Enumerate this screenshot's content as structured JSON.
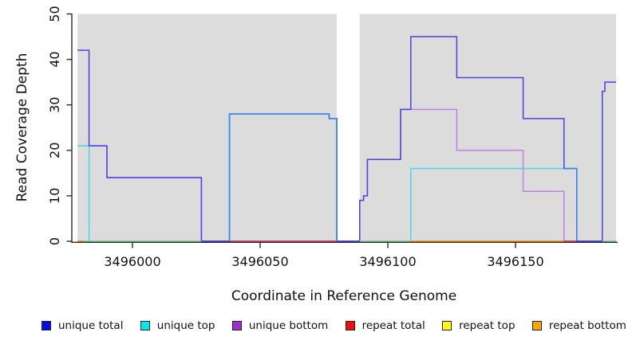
{
  "figure": {
    "background": "#ffffff",
    "panel_color": "#dcdcdc",
    "axis_color": "#2a2a2a"
  },
  "chart_data": {
    "type": "line",
    "step": true,
    "title": "",
    "xlabel": "Coordinate in Reference Genome",
    "ylabel": "Read Coverage Depth",
    "xlim": [
      3495978.5,
      3496189.4
    ],
    "ylim": [
      0,
      50
    ],
    "x_ticks": [
      "3496000",
      "3496050",
      "3496100",
      "3496150"
    ],
    "x_tick_values": [
      3496000,
      3496050,
      3496100,
      3496150
    ],
    "y_ticks": [
      "0",
      "10",
      "20",
      "30",
      "40",
      "50"
    ],
    "y_tick_values": [
      0,
      10,
      20,
      30,
      40,
      50
    ],
    "grid": false,
    "legend_position": "bottom",
    "background_bands": [
      {
        "x0": 3495978.5,
        "x1": 3496080,
        "color": "#dcdcdc"
      },
      {
        "x0": 3496089,
        "x1": 3496189.4,
        "color": "#dcdcdc"
      }
    ],
    "series": [
      {
        "name": "unique total",
        "color": "#4a42e2",
        "legend_fill": "#0a0ae6",
        "points": [
          [
            3495978.5,
            42
          ],
          [
            3495983,
            21
          ],
          [
            3495990,
            14
          ],
          [
            3496027,
            0
          ],
          [
            3496038,
            28
          ],
          [
            3496077,
            27
          ],
          [
            3496080,
            0
          ],
          [
            3496089,
            9
          ],
          [
            3496090.5,
            10
          ],
          [
            3496092,
            18
          ],
          [
            3496105,
            29
          ],
          [
            3496109,
            45
          ],
          [
            3496127,
            36
          ],
          [
            3496153,
            27
          ],
          [
            3496169,
            16
          ],
          [
            3496174,
            0
          ],
          [
            3496184,
            33
          ],
          [
            3496185,
            35
          ],
          [
            3496189.4,
            35
          ]
        ]
      },
      {
        "name": "unique top",
        "color": "#45d9e8",
        "legend_fill": "#00e8f0",
        "points": [
          [
            3495978.5,
            21
          ],
          [
            3495983,
            0
          ],
          [
            3496038,
            28
          ],
          [
            3496077,
            27
          ],
          [
            3496080,
            0
          ],
          [
            3496109,
            16
          ],
          [
            3496174,
            0
          ],
          [
            3496189.4,
            0
          ]
        ]
      },
      {
        "name": "unique bottom",
        "color": "#bf7fe6",
        "legend_fill": "#9933cc",
        "points": [
          [
            3495978.5,
            21
          ],
          [
            3495990,
            14
          ],
          [
            3496027,
            0
          ],
          [
            3496089,
            9
          ],
          [
            3496090.5,
            10
          ],
          [
            3496092,
            18
          ],
          [
            3496105,
            29
          ],
          [
            3496127,
            20
          ],
          [
            3496153,
            11
          ],
          [
            3496169,
            0
          ],
          [
            3496189.4,
            0
          ]
        ]
      },
      {
        "name": "repeat total",
        "color": "#d4406a",
        "legend_fill": "#ee1111",
        "points": [
          [
            3495978.5,
            0
          ],
          [
            3496189.4,
            0
          ]
        ]
      },
      {
        "name": "repeat top",
        "color": "#f2e24a",
        "legend_fill": "#ffff00",
        "points": [
          [
            3495978.5,
            0
          ],
          [
            3496189.4,
            0
          ]
        ]
      },
      {
        "name": "repeat bottom",
        "color": "#ff9718",
        "legend_fill": "#ffa500",
        "points": [
          [
            3495978.5,
            0
          ],
          [
            3496189.4,
            0
          ]
        ]
      }
    ],
    "overlap_segments": [
      {
        "note": "unique total + unique top coincide (rendered azure)",
        "color": "#3d87e8",
        "points": [
          [
            3496038,
            0
          ],
          [
            3496038,
            28
          ],
          [
            3496077,
            28
          ],
          [
            3496077,
            27
          ],
          [
            3496080,
            27
          ],
          [
            3496080,
            0
          ]
        ]
      },
      {
        "note": "unique total + unique top coincide (rendered azure)",
        "color": "#3d87e8",
        "points": [
          [
            3496169,
            16
          ],
          [
            3496174,
            16
          ],
          [
            3496174,
            0
          ]
        ]
      }
    ],
    "baseline_segments": [
      {
        "x0": 3495978.5,
        "x1": 3495980.5,
        "color": "#ff9718"
      },
      {
        "x0": 3495980.5,
        "x1": 3496027,
        "color": "#85cf98"
      },
      {
        "x0": 3496027,
        "x1": 3496038,
        "color": "#4a42e2"
      },
      {
        "x0": 3496038,
        "x1": 3496080,
        "color": "#d4406a"
      },
      {
        "x0": 3496080,
        "x1": 3496089,
        "color": "#4a42e2"
      },
      {
        "x0": 3496089,
        "x1": 3496109,
        "color": "#85cf98"
      },
      {
        "x0": 3496109,
        "x1": 3496169,
        "color": "#ff9718"
      },
      {
        "x0": 3496169,
        "x1": 3496174,
        "color": "#d4406a"
      },
      {
        "x0": 3496174,
        "x1": 3496184,
        "color": "#4a42e2"
      },
      {
        "x0": 3496184,
        "x1": 3496189.4,
        "color": "#85cf98"
      }
    ]
  }
}
